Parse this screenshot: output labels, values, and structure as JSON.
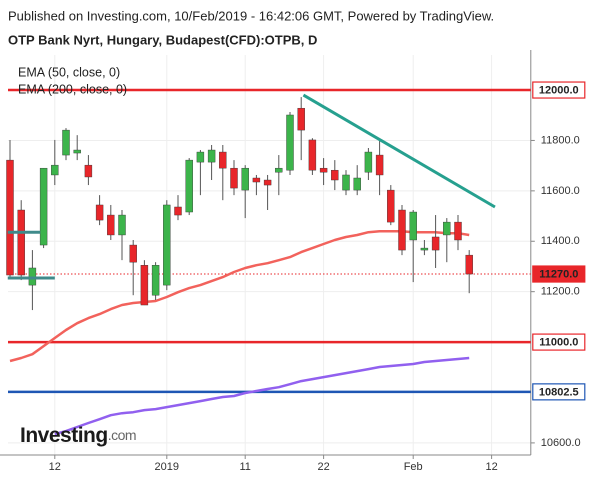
{
  "chart_data": {
    "type": "candlestick",
    "header": "Published on Investing.com, 10/Feb/2019 - 16:42:06 GMT, Powered by TradingView.",
    "title": "OTP Bank Nyrt, Hungary, Budapest(CFD):OTPB, D",
    "watermark": [
      "Investing",
      ".com"
    ],
    "categories": [
      null,
      null,
      null,
      null,
      "12",
      null,
      null,
      null,
      null,
      null,
      null,
      null,
      null,
      null,
      "2019",
      null,
      null,
      null,
      null,
      null,
      null,
      "11",
      null,
      null,
      null,
      null,
      null,
      null,
      "22",
      null,
      null,
      null,
      null,
      null,
      null,
      null,
      "Feb",
      null,
      null,
      null,
      null,
      null,
      null,
      "12",
      null,
      null,
      null
    ],
    "open": [
      11722,
      11524,
      11226,
      11385,
      11663,
      11742,
      11750,
      11702,
      11544,
      11504,
      11425,
      11385,
      11305,
      11186,
      11226,
      11536,
      11516,
      11714,
      11714,
      11754,
      11690,
      11603,
      11651,
      11643,
      11674,
      11682,
      11928,
      11802,
      11690,
      11682,
      11603,
      11603,
      11674,
      11742,
      11603,
      11524,
      11405,
      11365,
      11417,
      11425,
      11476,
      11345,
      null,
      null,
      null,
      null,
      null
    ],
    "high": [
      11802,
      11563,
      11365,
      11690,
      11802,
      11849,
      11821,
      11742,
      11583,
      11544,
      11524,
      11405,
      11325,
      11317,
      11563,
      11583,
      11730,
      11762,
      11782,
      11782,
      11722,
      11702,
      11663,
      11663,
      11742,
      11913,
      11972,
      11809,
      11730,
      11722,
      11682,
      11702,
      11770,
      11802,
      11623,
      11544,
      11524,
      11405,
      11504,
      11492,
      11504,
      11365,
      null,
      null,
      null,
      null,
      null
    ],
    "low": [
      11254,
      11246,
      11127,
      11373,
      11623,
      11722,
      11722,
      11623,
      11464,
      11405,
      11325,
      11186,
      11147,
      11167,
      11206,
      11484,
      11504,
      11583,
      11643,
      11563,
      11583,
      11492,
      11583,
      11524,
      11583,
      11663,
      11722,
      11663,
      11623,
      11603,
      11583,
      11583,
      11643,
      11583,
      11464,
      11345,
      11238,
      11345,
      11294,
      11317,
      11365,
      11194,
      null,
      null,
      null,
      null,
      null
    ],
    "close": [
      11266,
      11266,
      11294,
      11690,
      11702,
      11841,
      11762,
      11655,
      11484,
      11425,
      11504,
      11317,
      11147,
      11305,
      11544,
      11504,
      11722,
      11754,
      11762,
      11690,
      11611,
      11690,
      11635,
      11623,
      11690,
      11901,
      11841,
      11682,
      11674,
      11643,
      11663,
      11651,
      11754,
      11663,
      11476,
      11365,
      11516,
      11373,
      11365,
      11476,
      11405,
      11270,
      null,
      null,
      null,
      null,
      null
    ],
    "up_color": "#3cb44b",
    "down_color": "#e8262a",
    "series": [
      {
        "name": "EMA (50, close, 0)",
        "color": "#f2625c",
        "values": [
          10925,
          10937,
          10952,
          10984,
          11016,
          11048,
          11075,
          11095,
          11111,
          11131,
          11147,
          11155,
          11159,
          11163,
          11179,
          11198,
          11214,
          11226,
          11242,
          11258,
          11278,
          11294,
          11305,
          11313,
          11325,
          11337,
          11357,
          11373,
          11389,
          11405,
          11417,
          11425,
          11436,
          11440,
          11440,
          11440,
          11436,
          11436,
          11436,
          11432,
          11432,
          11425,
          null,
          null,
          null,
          null,
          null
        ]
      },
      {
        "name": "EMA (200, close, 0)",
        "color": "#9160ef",
        "values": [
          null,
          null,
          null,
          null,
          10635,
          10647,
          10663,
          10679,
          10694,
          10710,
          10718,
          10722,
          10730,
          10734,
          10742,
          10750,
          10758,
          10766,
          10774,
          10782,
          10786,
          10798,
          10806,
          10814,
          10821,
          10833,
          10845,
          10853,
          10861,
          10869,
          10877,
          10885,
          10893,
          10901,
          10905,
          10909,
          10913,
          10921,
          10925,
          10929,
          10933,
          10937,
          null,
          null,
          null,
          null,
          null
        ]
      }
    ],
    "hlines": [
      {
        "value": 12000,
        "label": "12000.0",
        "color": "#e8262a",
        "dotted": false
      },
      {
        "value": 11000,
        "label": "11000.0",
        "color": "#e8262a",
        "dotted": false
      },
      {
        "value": 10802.5,
        "label": "10802.5",
        "color": "#1e56b4",
        "dotted": false
      },
      {
        "value": 11270,
        "label": "11270.0",
        "color": "#e8262a",
        "dotted": true
      }
    ],
    "drawings": [
      {
        "color": "#26a08f",
        "x": [
          26.2,
          43.3
        ],
        "values": [
          11980,
          11536
        ]
      },
      {
        "color": "#3f8a8a",
        "x": [
          -0.2,
          2.7
        ],
        "values": [
          11436,
          11436
        ]
      },
      {
        "color": "#3f8a8a",
        "x": [
          -0.2,
          4.0
        ],
        "values": [
          11254,
          11254
        ]
      }
    ],
    "ylim": [
      10552,
      12139
    ],
    "yticks": [
      {
        "value": 10600,
        "label": "10600.0"
      },
      {
        "value": 11200,
        "label": "11200.0"
      },
      {
        "value": 11400,
        "label": "11400.0"
      },
      {
        "value": 11600,
        "label": "11600.0"
      },
      {
        "value": 11800,
        "label": "11800.0"
      }
    ],
    "grid": true
  }
}
